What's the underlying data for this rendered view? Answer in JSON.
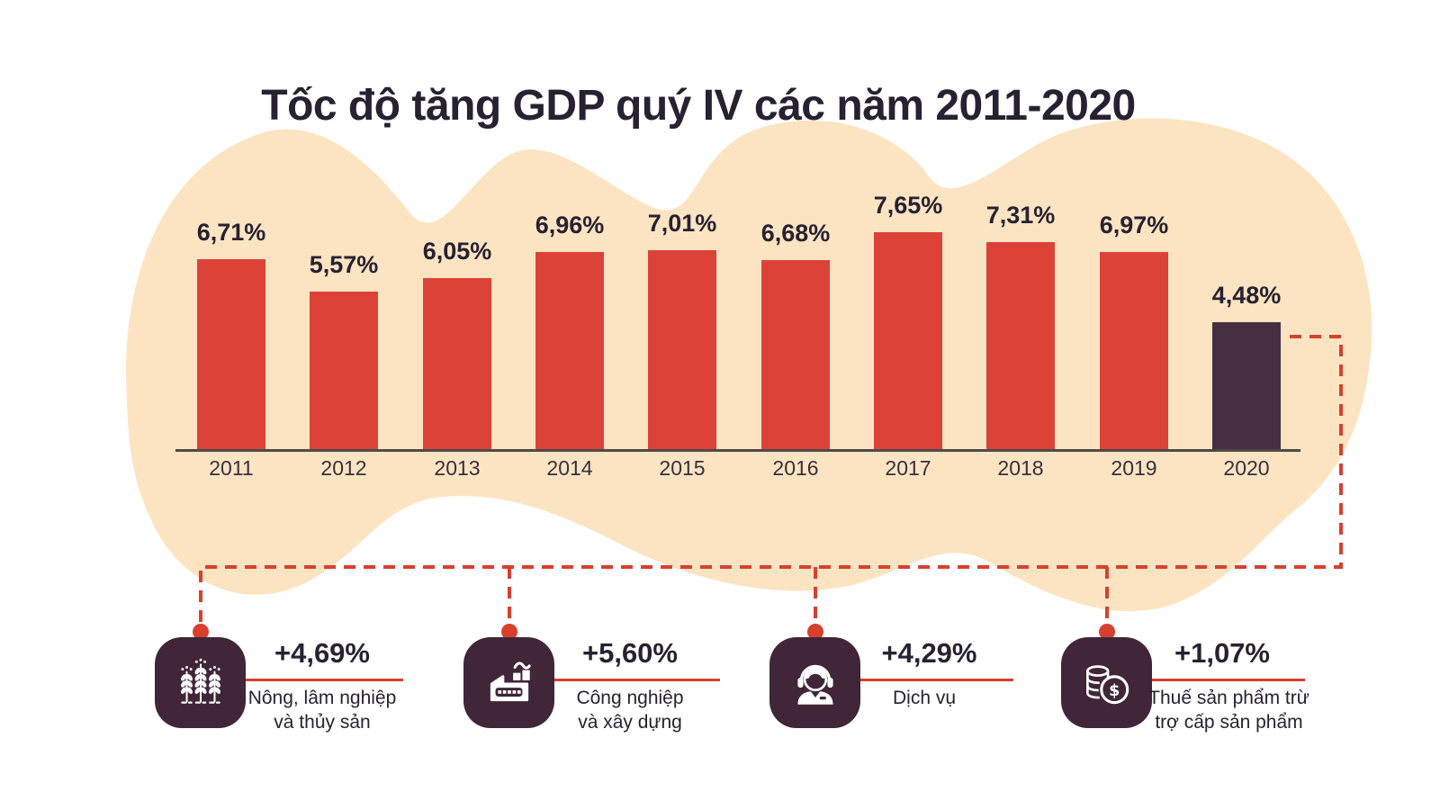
{
  "title": "Tốc độ tăng GDP quý IV các năm 2011-2020",
  "chart_data": {
    "type": "bar",
    "title": "Tốc độ tăng GDP quý IV các năm 2011-2020",
    "categories": [
      "2011",
      "2012",
      "2013",
      "2014",
      "2015",
      "2016",
      "2017",
      "2018",
      "2019",
      "2020"
    ],
    "values": [
      6.71,
      5.57,
      6.05,
      6.96,
      7.01,
      6.68,
      7.65,
      7.31,
      6.97,
      4.48
    ],
    "value_labels": [
      "6,71%",
      "5,57%",
      "6,05%",
      "6,96%",
      "7,01%",
      "6,68%",
      "7,65%",
      "7,31%",
      "6,97%",
      "4,48%"
    ],
    "unit": "%",
    "highlight_index": 9,
    "ylim": [
      0,
      8
    ],
    "grid": false,
    "legend": false,
    "xlabel": "",
    "ylabel": ""
  },
  "sectors": [
    {
      "icon": "wheat-icon",
      "pct": "+4,69%",
      "name_lines": [
        "Nông, lâm nghiệp",
        "và thủy sản"
      ]
    },
    {
      "icon": "factory-icon",
      "pct": "+5,60%",
      "name_lines": [
        "Công nghiệp",
        "và xây dựng"
      ]
    },
    {
      "icon": "headset-person-icon",
      "pct": "+4,29%",
      "name_lines": [
        "Dịch vụ"
      ]
    },
    {
      "icon": "coins-dollar-icon",
      "pct": "+1,07%",
      "name_lines": [
        "Thuế sản phẩm trừ",
        "trợ cấp sản phẩm"
      ]
    }
  ],
  "colors": {
    "bar": "#dd4238",
    "highlight_bar": "#462e42",
    "blob": "#fce4c3",
    "tile": "#402638",
    "dashed_line": "#d8402e",
    "text_dark": "#272231",
    "axis": "#4f4a49",
    "background": "#ffffff"
  }
}
